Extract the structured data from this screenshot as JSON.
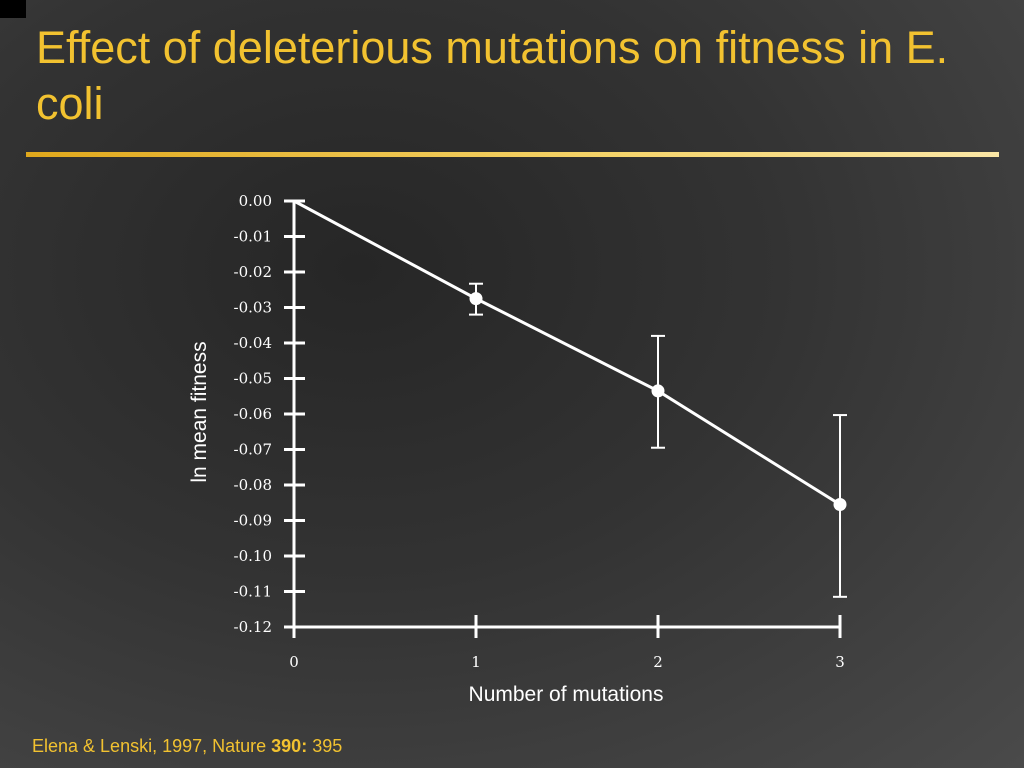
{
  "slide": {
    "title": "Effect of deleterious mutations on fitness in E. coli",
    "citation": {
      "prefix": "Elena & Lenski, 1997, Nature ",
      "volume": "390:",
      "page": " 395"
    }
  },
  "colors": {
    "title": "#f2c230",
    "rule": "#f2c230",
    "foreground": "#ffffff"
  },
  "chart_data": {
    "type": "line",
    "xlabel": "Number of mutations",
    "ylabel": "ln mean fitness",
    "x_ticks": [
      "0",
      "1",
      "2",
      "3"
    ],
    "y_ticks": [
      "0.00",
      "-0.01",
      "-0.02",
      "-0.03",
      "-0.04",
      "-0.05",
      "-0.06",
      "-0.07",
      "-0.08",
      "-0.09",
      "-0.10",
      "-0.11",
      "-0.12"
    ],
    "xlim": [
      0,
      3
    ],
    "ylim": [
      -0.12,
      0
    ],
    "series": [
      {
        "x": [
          0,
          1,
          2,
          3
        ],
        "y": [
          0.0,
          -0.0275,
          -0.0535,
          -0.0855
        ],
        "error_low": [
          null,
          -0.032,
          -0.0695,
          -0.1115
        ],
        "error_high": [
          null,
          -0.0233,
          -0.038,
          -0.0603
        ],
        "markers": [
          false,
          true,
          true,
          true
        ]
      }
    ]
  }
}
